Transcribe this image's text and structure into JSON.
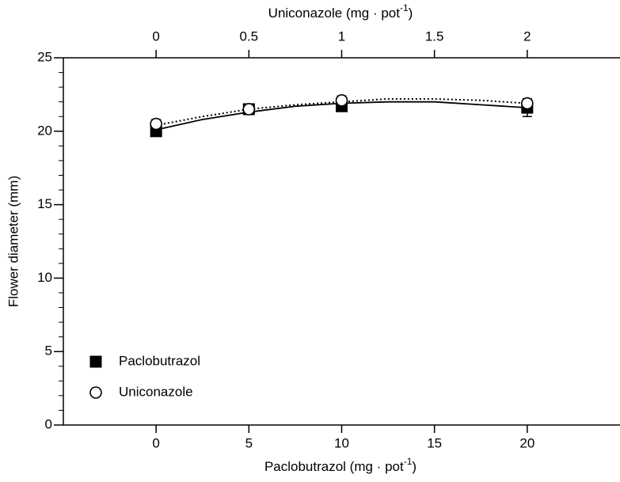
{
  "chart_data": {
    "type": "scatter",
    "xlabel": [
      "Paclobutrazol (mg · pot",
      "-1",
      ")"
    ],
    "x2label": [
      "Uniconazole (mg · pot",
      "-1",
      ")"
    ],
    "ylabel": "Flower diameter (mm)",
    "xlim": [
      -5,
      25
    ],
    "xticks": [
      0,
      5,
      10,
      15,
      20
    ],
    "x2lim": [
      -0.5,
      2.5
    ],
    "x2ticks": [
      0,
      0.5,
      1,
      1.5,
      2
    ],
    "ylim": [
      0,
      25
    ],
    "yticks": [
      0,
      5,
      10,
      15,
      20,
      25
    ],
    "yminorticks": [
      1,
      2,
      3,
      4,
      6,
      7,
      8,
      9,
      11,
      12,
      13,
      14,
      16,
      17,
      18,
      19,
      21,
      22,
      23,
      24
    ],
    "legend": "lower left",
    "series": [
      {
        "name": "Paclobutrazol",
        "marker": "square",
        "color": "#000000",
        "axis": "x",
        "x": [
          0,
          5,
          10,
          20
        ],
        "values": [
          20.0,
          21.5,
          21.7,
          21.6
        ],
        "errors": [
          0.3,
          0.2,
          0.3,
          0.6
        ],
        "fit_x": [
          0,
          2.5,
          5,
          7.5,
          10,
          12.5,
          15,
          17.5,
          20
        ],
        "fit": [
          20.1,
          20.8,
          21.3,
          21.7,
          21.9,
          22.0,
          22.0,
          21.8,
          21.6
        ],
        "fit_style": "solid"
      },
      {
        "name": "Uniconazole",
        "marker": "circle",
        "color": "#000000",
        "axis": "x2",
        "x": [
          0,
          0.5,
          1,
          2
        ],
        "values": [
          20.5,
          21.5,
          22.1,
          21.9
        ],
        "errors": [
          0.3,
          0.2,
          0.3,
          0.3
        ],
        "fit_x": [
          0,
          0.25,
          0.5,
          0.75,
          1,
          1.25,
          1.5,
          1.75,
          2
        ],
        "fit": [
          20.4,
          21.0,
          21.5,
          21.8,
          22.0,
          22.2,
          22.2,
          22.1,
          21.9
        ],
        "fit_style": "dotted"
      }
    ]
  }
}
